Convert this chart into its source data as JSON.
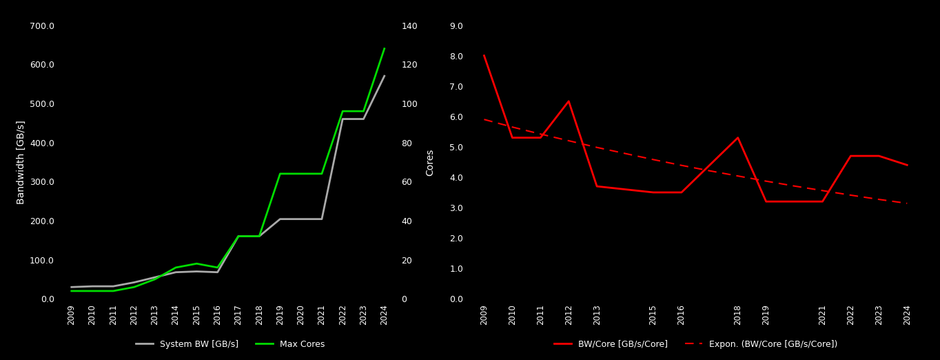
{
  "left": {
    "years": [
      2009,
      2010,
      2011,
      2012,
      2013,
      2014,
      2015,
      2016,
      2017,
      2018,
      2019,
      2020,
      2021,
      2022,
      2023,
      2024
    ],
    "system_bw": [
      30,
      32,
      32,
      42,
      55,
      68,
      70,
      68,
      160,
      160,
      204,
      204,
      204,
      460,
      460,
      570
    ],
    "max_cores": [
      4,
      4,
      4,
      6,
      10,
      16,
      18,
      16,
      32,
      32,
      64,
      64,
      64,
      96,
      96,
      128
    ],
    "bw_ylabel": "Bandwidth [GB/s]",
    "cores_ylabel": "Cores",
    "ylim_bw": [
      0,
      700
    ],
    "ylim_cores": [
      0,
      140
    ],
    "yticks_bw": [
      0.0,
      100.0,
      200.0,
      300.0,
      400.0,
      500.0,
      600.0,
      700.0
    ],
    "yticks_cores": [
      0,
      20,
      40,
      60,
      80,
      100,
      120,
      140
    ],
    "bw_color": "#aaaaaa",
    "cores_color": "#00dd00",
    "legend_bw": "System BW [GB/s]",
    "legend_cores": "Max Cores"
  },
  "right": {
    "years": [
      2009,
      2010,
      2011,
      2012,
      2013,
      2015,
      2016,
      2018,
      2019,
      2021,
      2022,
      2023,
      2024
    ],
    "bw_per_core": [
      8.0,
      5.3,
      5.3,
      6.5,
      3.7,
      3.5,
      3.5,
      5.3,
      3.2,
      3.2,
      4.7,
      4.7,
      4.4
    ],
    "expon_years": [
      2009,
      2010,
      2011,
      2012,
      2013,
      2014,
      2015,
      2016,
      2017,
      2018,
      2019,
      2020,
      2021,
      2022,
      2023,
      2024
    ],
    "expon_values": [
      5.9,
      5.65,
      5.42,
      5.2,
      4.98,
      4.78,
      4.58,
      4.39,
      4.21,
      4.04,
      3.87,
      3.71,
      3.56,
      3.41,
      3.27,
      3.14
    ],
    "ylim": [
      0.0,
      9.0
    ],
    "yticks": [
      0.0,
      1.0,
      2.0,
      3.0,
      4.0,
      5.0,
      6.0,
      7.0,
      8.0,
      9.0
    ],
    "bw_core_color": "#ff0000",
    "expon_color": "#ff0000",
    "legend_bw_core": "BW/Core [GB/s/Core]",
    "legend_expon": "Expon. (BW/Core [GB/s/Core])"
  },
  "background_color": "#000000",
  "text_color": "#ffffff",
  "figsize": [
    13.64,
    5.22
  ],
  "dpi": 100
}
